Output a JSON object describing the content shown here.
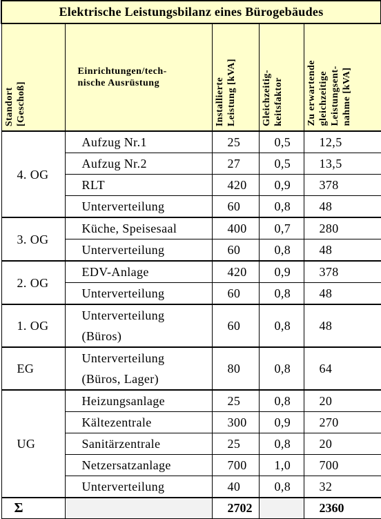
{
  "header": {
    "title": "Elektrische Leistungsbilanz eines Bürogebäudes"
  },
  "table": {
    "columns": [
      "Standort\n[Geschoß]",
      "Einrichtungen/tech-\nnische Ausrüstung",
      "Installierte\nLeistung [kVA]",
      "Gleichzeitig-\nkeitsfaktor",
      "Zu erwartende\ngleichzeitige\nLeistungsent-\nnahme [kVA]"
    ],
    "groups": [
      {
        "standort": "4. OG",
        "rows": [
          [
            "Aufzug Nr.1",
            "25",
            "0,5",
            "12,5"
          ],
          [
            "Aufzug Nr.2",
            "27",
            "0,5",
            "13,5"
          ],
          [
            "RLT",
            "420",
            "0,9",
            "378"
          ],
          [
            "Unterverteilung",
            "60",
            "0,8",
            "48"
          ]
        ]
      },
      {
        "standort": "3. OG",
        "rows": [
          [
            "Küche, Speisesaal",
            "400",
            "0,7",
            "280"
          ],
          [
            "Unterverteilung",
            "60",
            "0,8",
            "48"
          ]
        ]
      },
      {
        "standort": "2. OG",
        "rows": [
          [
            "EDV-Anlage",
            "420",
            "0,9",
            "378"
          ],
          [
            "Unterverteilung",
            "60",
            "0,8",
            "48"
          ]
        ]
      },
      {
        "standort": "1. OG",
        "rows": [
          [
            "Unterverteilung\n(Büros)",
            "60",
            "0,8",
            "48"
          ]
        ]
      },
      {
        "standort": "EG",
        "rows": [
          [
            "Unterverteilung\n(Büros, Lager)",
            "80",
            "0,8",
            "64"
          ]
        ]
      },
      {
        "standort": "UG",
        "rows": [
          [
            "Heizungsanlage",
            "25",
            "0,8",
            "20"
          ],
          [
            "Kältezentrale",
            "300",
            "0,9",
            "270"
          ],
          [
            "Sanitärzentrale",
            "25",
            "0,8",
            "20"
          ],
          [
            "Netzersatzanlage",
            "700",
            "1,0",
            "700"
          ],
          [
            "Unterverteilung",
            "40",
            "0,8",
            "32"
          ]
        ]
      }
    ],
    "sum": {
      "label": "Σ",
      "installed": "2702",
      "expected": "2360"
    }
  }
}
